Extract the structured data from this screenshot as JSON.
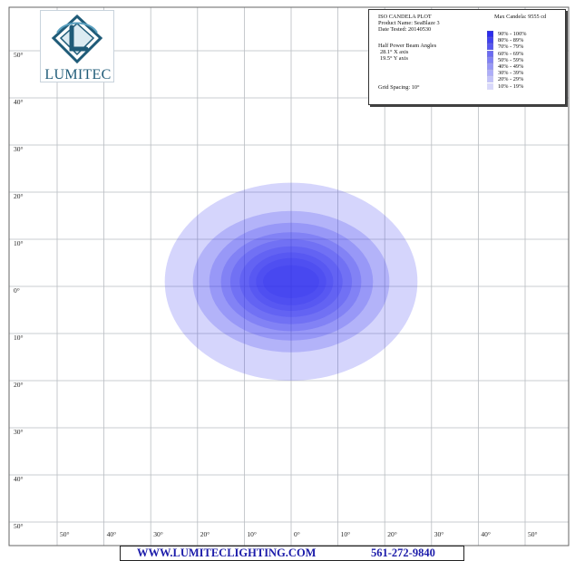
{
  "chart_data": {
    "type": "heatmap",
    "title": "ISO CANDELA PLOT",
    "product_name": "Product Name: SeaBlaze 3",
    "date_tested": "Date Tested: 20140530",
    "max_candela": "Max Candela: 9555 cd",
    "beam_angles_heading": "Half Power Beam Angles",
    "x_axis_angle": "28.1° X axis",
    "y_axis_angle": "19.5° Y axis",
    "grid_spacing": "Grid Spacing: 10°",
    "x_tick_labels": [
      "50°",
      "40°",
      "30°",
      "20°",
      "10°",
      "0°",
      "10°",
      "20°",
      "30°",
      "40°",
      "50°"
    ],
    "y_tick_labels": [
      "50°",
      "40°",
      "30°",
      "20°",
      "10°",
      "0°",
      "10°",
      "20°",
      "30°",
      "40°",
      "50°"
    ],
    "x_range_deg": [
      -50,
      50
    ],
    "y_range_deg": [
      -50,
      50
    ],
    "grid": true,
    "legend_placement": "top-right",
    "center_deg": [
      0,
      1
    ],
    "contours": [
      {
        "label": "90% - 100%",
        "half_width_deg": 6.0,
        "half_height_deg": 3.5
      },
      {
        "label": "80% - 89%",
        "half_width_deg": 7.5,
        "half_height_deg": 5.0
      },
      {
        "label": "70% - 79%",
        "half_width_deg": 9.0,
        "half_height_deg": 6.2
      },
      {
        "label": "60% - 69%",
        "half_width_deg": 11.0,
        "half_height_deg": 7.5
      },
      {
        "label": "50% - 59%",
        "half_width_deg": 13.0,
        "half_height_deg": 9.0
      },
      {
        "label": "40% - 49%",
        "half_width_deg": 15.0,
        "half_height_deg": 10.5
      },
      {
        "label": "30% - 39%",
        "half_width_deg": 17.5,
        "half_height_deg": 12.5
      },
      {
        "label": "20% - 29%",
        "half_width_deg": 21.0,
        "half_height_deg": 15.0
      },
      {
        "label": "10% - 19%",
        "half_width_deg": 27.0,
        "half_height_deg": 21.0
      }
    ],
    "colors": {
      "fill": "#2b2bf0",
      "grid": "#b9bdc2",
      "frame": "#666666"
    }
  },
  "logo": {
    "text": "LUMITEC"
  },
  "footer": {
    "url": "WWW.LUMITECLIGHTING.COM",
    "phone": "561-272-9840"
  }
}
